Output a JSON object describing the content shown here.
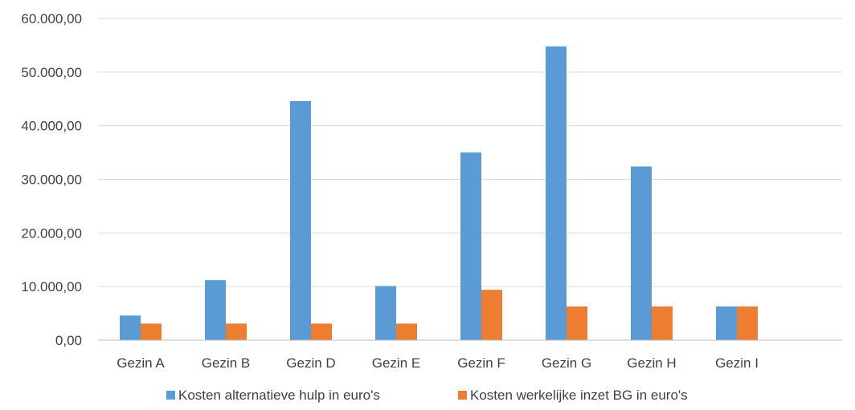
{
  "chart_data": {
    "type": "bar",
    "categories": [
      "Gezin A",
      "Gezin B",
      "Gezin D",
      "Gezin E",
      "Gezin F",
      "Gezin G",
      "Gezin H",
      "Gezin I"
    ],
    "series": [
      {
        "name": "Kosten alternatieve hulp in euro's",
        "color": "#5b9bd5",
        "values": [
          4600,
          11200,
          44600,
          10100,
          35000,
          54800,
          32400,
          6300
        ]
      },
      {
        "name": "Kosten werkelijke inzet BG in euro's",
        "color": "#ed7d31",
        "values": [
          3100,
          3100,
          3100,
          3100,
          9400,
          6300,
          6300,
          6300
        ]
      }
    ],
    "yticks": [
      "0,00",
      "10.000,00",
      "20.000,00",
      "30.000,00",
      "40.000,00",
      "50.000,00",
      "60.000,00"
    ],
    "ylim": [
      0,
      60000
    ],
    "grid": true,
    "legend_position": "bottom",
    "title": "",
    "xlabel": "",
    "ylabel": ""
  }
}
